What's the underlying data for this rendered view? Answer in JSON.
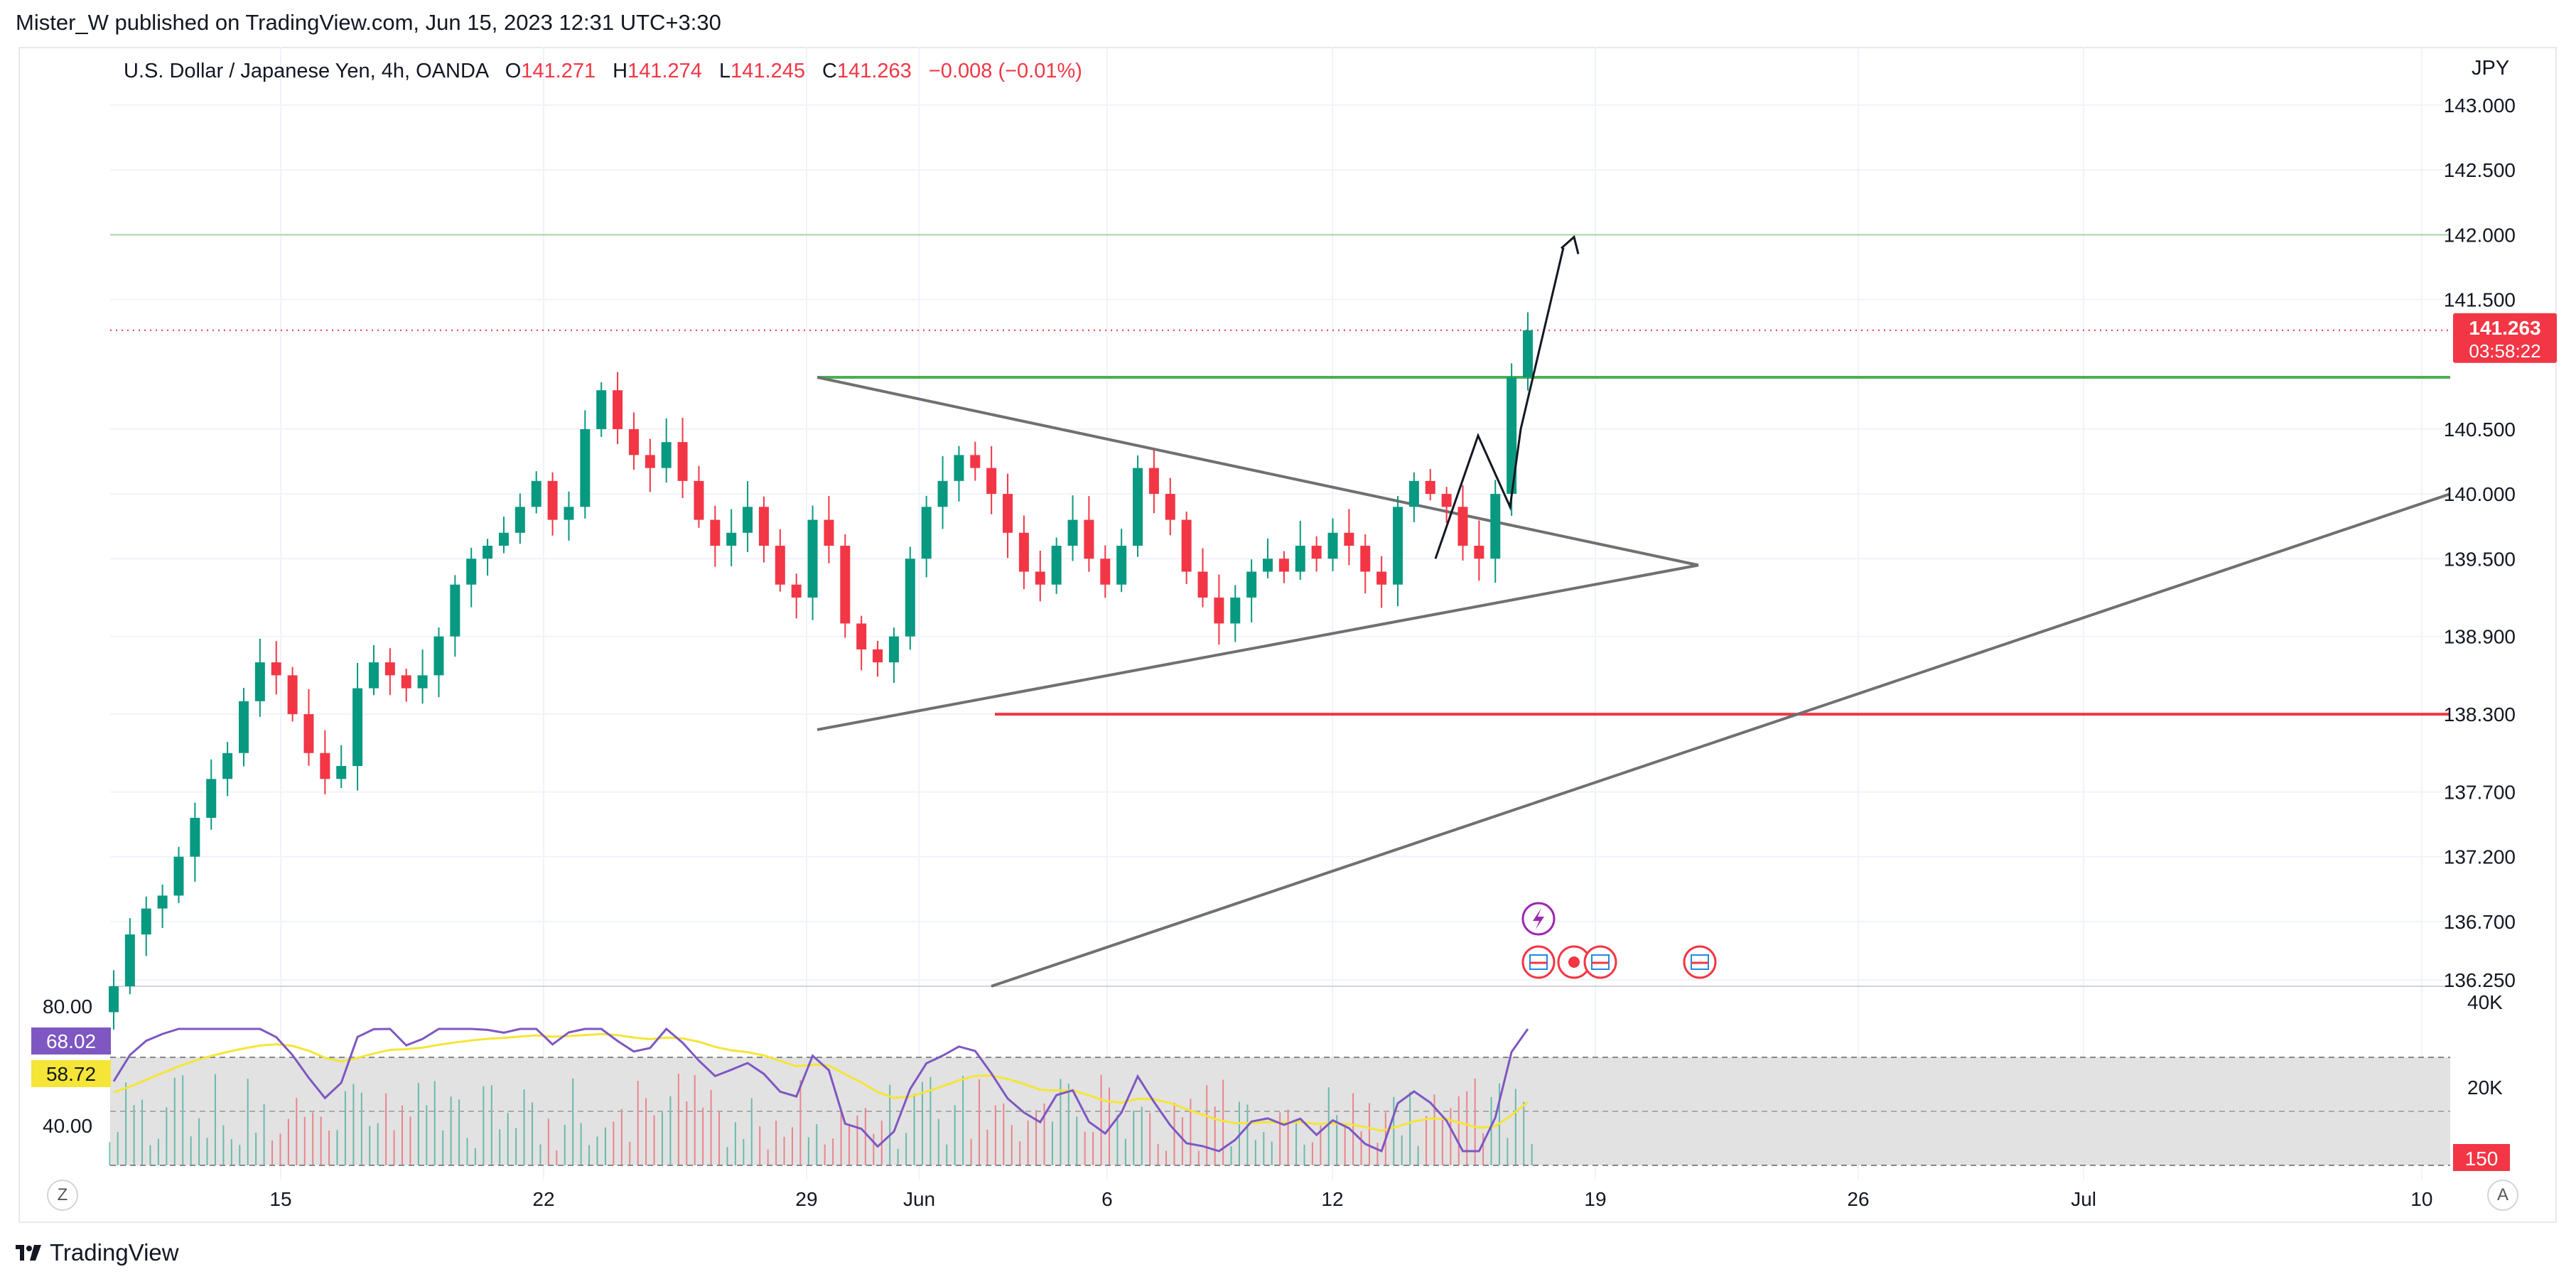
{
  "header": {
    "text": "Mister_W published on TradingView.com, Jun 15, 2023 12:31 UTC+3:30"
  },
  "legend": {
    "symbol": "U.S. Dollar / Japanese Yen, 4h, OANDA",
    "o_label": "O",
    "o_value": "141.271",
    "h_label": "H",
    "h_value": "141.274",
    "l_label": "L",
    "l_value": "141.245",
    "c_label": "C",
    "c_value": "141.263",
    "change": "−0.008 (−0.01%)"
  },
  "price_axis": {
    "currency": "JPY",
    "last_price": "141.263",
    "countdown": "03:58:22"
  },
  "indicator_axis": {
    "rsi_upper": "80.00",
    "rsi_lower": "40.00",
    "rsi_value": "68.02",
    "rsi_ma_value": "58.72",
    "vol_top": "40K",
    "vol_mid": "20K",
    "vol_last": "150"
  },
  "footer": {
    "brand": "TradingView",
    "z_button": "Z",
    "a_button": "A"
  },
  "colors": {
    "up": "#089981",
    "down": "#f23645",
    "rsi": "#7e57c2",
    "rsi_ma": "#f5e536",
    "resistance": "#4caf50",
    "support": "#f23645",
    "trend": "#707070",
    "target": "#a5d6a7",
    "flag": "#f23645",
    "event": "#9c27b0"
  },
  "chart_data": {
    "type": "candlestick",
    "symbol": "USDJPY",
    "timeframe": "4h",
    "x_ticks": [
      "15",
      "22",
      "29",
      "Jun",
      "6",
      "12",
      "19",
      "26",
      "Jul",
      "10"
    ],
    "y_ticks": [
      143.0,
      142.5,
      142.0,
      141.5,
      140.5,
      140.0,
      139.5,
      138.9,
      138.3,
      137.7,
      137.2,
      136.7,
      136.25
    ],
    "y_tick_labels": [
      "143.000",
      "142.500",
      "142.000",
      "141.500",
      "140.500",
      "140.000",
      "139.500",
      "138.900",
      "138.300",
      "137.700",
      "137.200",
      "136.700",
      "136.250"
    ],
    "ylim": [
      136.2,
      143.45
    ],
    "x_range_days": [
      "May 10",
      "Jul 11"
    ],
    "last_close": 141.263,
    "candles_approx": [
      136.2,
      136.6,
      136.8,
      136.9,
      137.2,
      137.5,
      137.8,
      138.0,
      138.4,
      138.7,
      138.6,
      138.3,
      138.0,
      137.8,
      137.9,
      138.5,
      138.7,
      138.6,
      138.5,
      138.6,
      138.9,
      139.3,
      139.5,
      139.6,
      139.7,
      139.9,
      140.1,
      139.8,
      139.9,
      140.5,
      140.8,
      140.5,
      140.3,
      140.2,
      140.4,
      140.1,
      139.8,
      139.6,
      139.7,
      139.9,
      139.6,
      139.3,
      139.2,
      139.8,
      139.6,
      139.0,
      138.8,
      138.7,
      138.9,
      139.5,
      139.9,
      140.1,
      140.3,
      140.2,
      140.0,
      139.7,
      139.4,
      139.3,
      139.6,
      139.8,
      139.5,
      139.3,
      139.6,
      140.2,
      140.0,
      139.8,
      139.4,
      139.2,
      139.0,
      139.2,
      139.4,
      139.5,
      139.4,
      139.6,
      139.5,
      139.7,
      139.6,
      139.4,
      139.3,
      139.9,
      140.1,
      140.0,
      139.9,
      139.6,
      139.5,
      140.0,
      140.9,
      141.263
    ],
    "annotations": {
      "resistance_level": 140.9,
      "support_level": 138.3,
      "target_level": 142.0,
      "triangle_apex": 139.45,
      "long_trendline": {
        "from": 136.2,
        "to": 140.0
      }
    },
    "rsi": {
      "upper": 80,
      "lower": 40,
      "value": 68.02,
      "ma_value": 58.72
    },
    "volume": {
      "labels": [
        "40K",
        "20K"
      ],
      "last": 150
    }
  }
}
